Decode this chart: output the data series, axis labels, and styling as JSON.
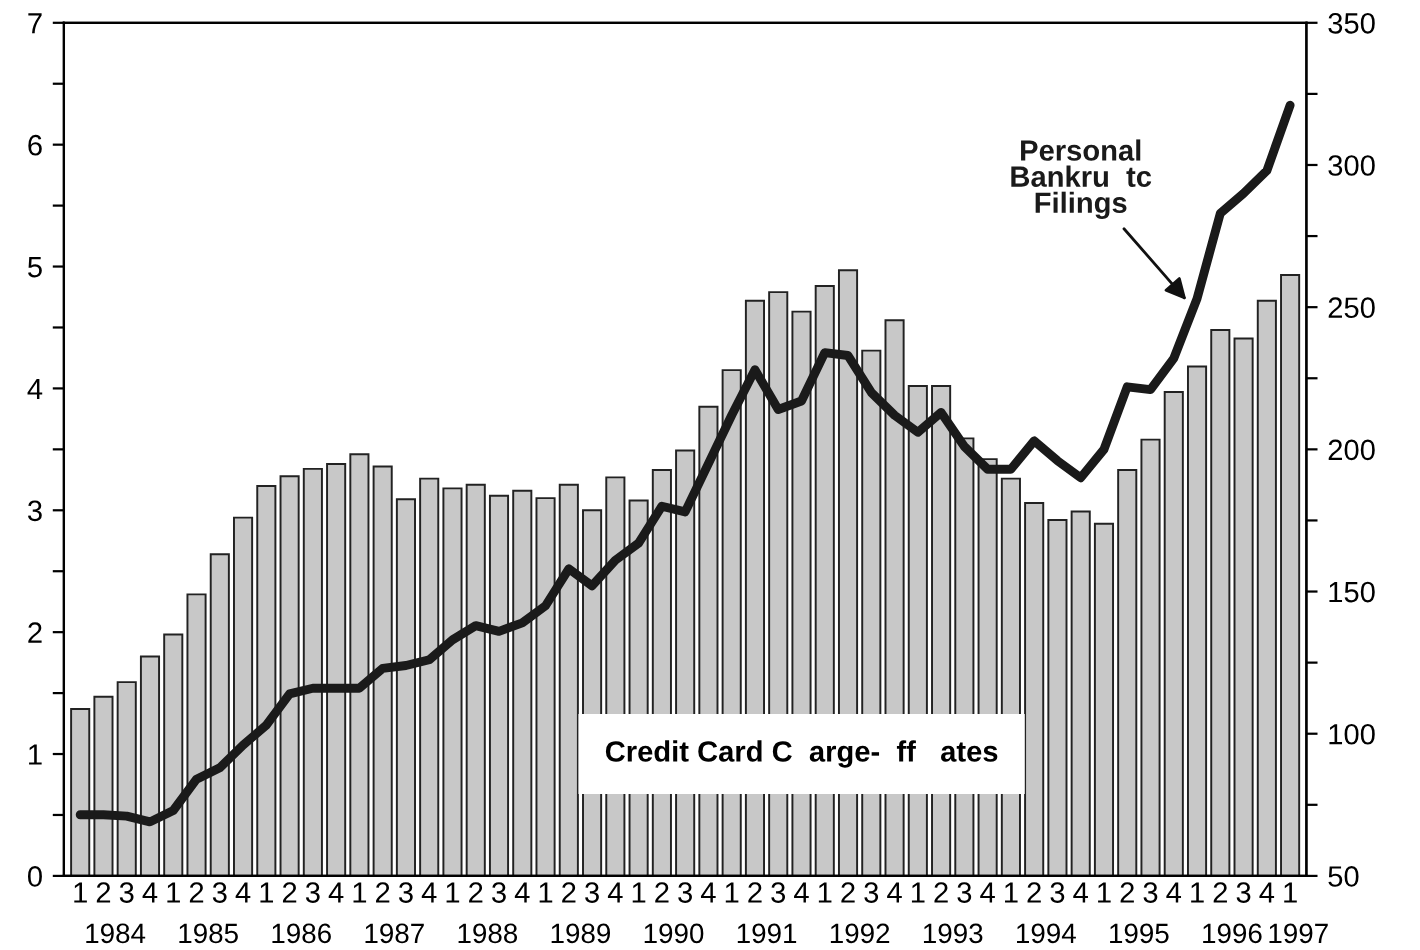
{
  "chart_data": {
    "type": "bar",
    "categories": [
      "1",
      "2",
      "3",
      "4",
      "1",
      "2",
      "3",
      "4",
      "1",
      "2",
      "3",
      "4",
      "1",
      "2",
      "3",
      "4",
      "1",
      "2",
      "3",
      "4",
      "1",
      "2",
      "3",
      "4",
      "1",
      "2",
      "3",
      "4",
      "1",
      "2",
      "3",
      "4",
      "1",
      "2",
      "3",
      "4",
      "1",
      "2",
      "3",
      "4",
      "1",
      "2",
      "3",
      "4",
      "1",
      "2",
      "3",
      "4",
      "1",
      "2",
      "3",
      "4",
      "1"
    ],
    "series": [
      {
        "name": "Credit Card C  arge-  ff   ates",
        "color": "#c8c8c8",
        "values": [
          1.37,
          1.47,
          1.59,
          1.8,
          1.98,
          2.31,
          2.64,
          2.94,
          3.2,
          3.28,
          3.34,
          3.38,
          3.46,
          3.36,
          3.09,
          3.26,
          3.18,
          3.21,
          3.12,
          3.16,
          3.1,
          3.21,
          3.0,
          3.27,
          3.08,
          3.33,
          3.49,
          3.85,
          4.15,
          4.72,
          4.79,
          4.63,
          4.84,
          4.97,
          4.31,
          4.56,
          4.02,
          4.02,
          3.59,
          3.42,
          3.26,
          3.06,
          2.92,
          2.99,
          2.89,
          3.33,
          3.58,
          3.97,
          4.18,
          4.48,
          4.41,
          4.72,
          4.93
        ]
      },
      {
        "name": "Personal\nBankru  tc\nFilings",
        "type": "line",
        "axis": "y2",
        "color": "#1a1a1a",
        "values": [
          71.5,
          71.5,
          71,
          69,
          73,
          84,
          88,
          96,
          103,
          114,
          116,
          116,
          116,
          123,
          124,
          126,
          133,
          138,
          136,
          139,
          145,
          158,
          152,
          161,
          167,
          180,
          178,
          195,
          212,
          228,
          214,
          217,
          234,
          233,
          220,
          212,
          206,
          213,
          201,
          193,
          193,
          203,
          196,
          190,
          200,
          222,
          221,
          232,
          253,
          283,
          290,
          298,
          321
        ]
      }
    ],
    "ylim": [
      0,
      7
    ],
    "yticks": [
      0,
      {
        "value": 0.5,
        "label": null
      },
      1,
      {
        "value": 1.5,
        "label": null
      },
      2,
      {
        "value": 2.5,
        "label": null
      },
      3,
      {
        "value": 3.5,
        "label": null
      },
      4,
      {
        "value": 4.5,
        "label": null
      },
      5,
      {
        "value": 5.5,
        "label": null
      },
      6,
      {
        "value": 6.5,
        "label": null
      },
      7
    ],
    "y2lim": [
      50,
      350
    ],
    "y2ticks": [
      50,
      {
        "value": 75,
        "label": null
      },
      100,
      {
        "value": 125,
        "label": null
      },
      150,
      {
        "value": 175,
        "label": null
      },
      200,
      {
        "value": 225,
        "label": null
      },
      250,
      {
        "value": 275,
        "label": null
      },
      300,
      {
        "value": 325,
        "label": null
      },
      350
    ],
    "annotations": [
      "1984",
      "1985",
      "1986",
      "1987",
      "1988",
      "1989",
      "1990",
      "1991",
      "1992",
      "1993",
      "1994",
      "1995",
      "1996",
      "1997"
    ],
    "grid": false,
    "legend": false,
    "line_style": "solid",
    "marker": "none"
  }
}
